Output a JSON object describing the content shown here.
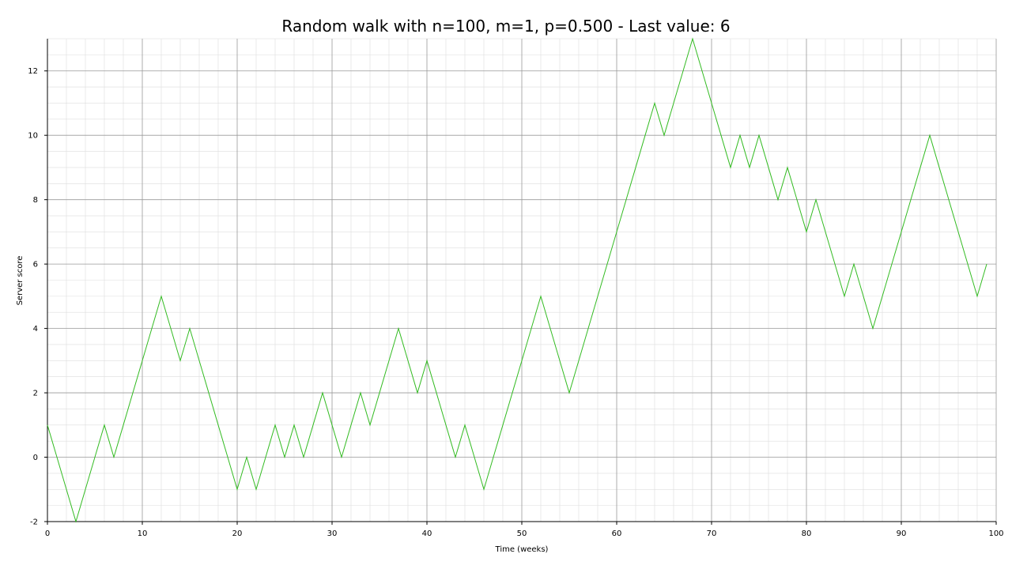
{
  "chart_data": {
    "type": "line",
    "title": "Random walk with n=100, m=1, p=0.500 - Last value: 6",
    "xlabel": "Time (weeks)",
    "ylabel": "Server score",
    "xlim": [
      0,
      100
    ],
    "ylim": [
      -2,
      13
    ],
    "x_ticks": [
      0,
      10,
      20,
      30,
      40,
      50,
      60,
      70,
      80,
      90,
      100
    ],
    "x_tick_labels": [
      "0",
      "10",
      "20",
      "30",
      "40",
      "50",
      "60",
      "70",
      "80",
      "90",
      "100"
    ],
    "y_ticks": [
      -2,
      0,
      2,
      4,
      6,
      8,
      10,
      12
    ],
    "y_tick_labels": [
      "-2",
      "0",
      "2",
      "4",
      "6",
      "8",
      "10",
      "12"
    ],
    "grid": true,
    "minor_grid": true,
    "line_color": "#33bb22",
    "major_grid_color": "#999999",
    "minor_grid_color": "#dddddd",
    "series": [
      {
        "x": [
          0,
          1,
          2,
          3,
          4,
          5,
          6,
          7,
          8,
          9,
          10,
          11,
          12,
          13,
          14,
          15,
          16,
          17,
          18,
          19,
          20,
          21,
          22,
          23,
          24,
          25,
          26,
          27,
          28,
          29,
          30,
          31,
          32,
          33,
          34,
          35,
          36,
          37,
          38,
          39,
          40,
          41,
          42,
          43,
          44,
          45,
          46,
          47,
          48,
          49,
          50,
          51,
          52,
          53,
          54,
          55,
          56,
          57,
          58,
          59,
          60,
          61,
          62,
          63,
          64,
          65,
          66,
          67,
          68,
          69,
          70,
          71,
          72,
          73,
          74,
          75,
          76,
          77,
          78,
          79,
          80,
          81,
          82,
          83,
          84,
          85,
          86,
          87,
          88,
          89,
          90,
          91,
          92,
          93,
          94,
          95,
          96,
          97,
          98,
          99
        ],
        "values": [
          1,
          0,
          -1,
          -2,
          -1,
          0,
          1,
          0,
          1,
          2,
          3,
          4,
          5,
          4,
          3,
          4,
          3,
          2,
          1,
          0,
          -1,
          0,
          -1,
          0,
          1,
          0,
          1,
          0,
          1,
          2,
          1,
          0,
          1,
          2,
          1,
          2,
          3,
          4,
          3,
          2,
          3,
          2,
          1,
          0,
          1,
          0,
          -1,
          0,
          1,
          2,
          3,
          4,
          5,
          4,
          3,
          2,
          3,
          4,
          5,
          6,
          7,
          8,
          9,
          10,
          11,
          10,
          11,
          12,
          13,
          12,
          11,
          10,
          9,
          10,
          9,
          10,
          9,
          8,
          9,
          8,
          7,
          8,
          7,
          6,
          5,
          6,
          5,
          4,
          5,
          6,
          7,
          8,
          9,
          10,
          9,
          8,
          7,
          6,
          5,
          6
        ]
      }
    ]
  }
}
